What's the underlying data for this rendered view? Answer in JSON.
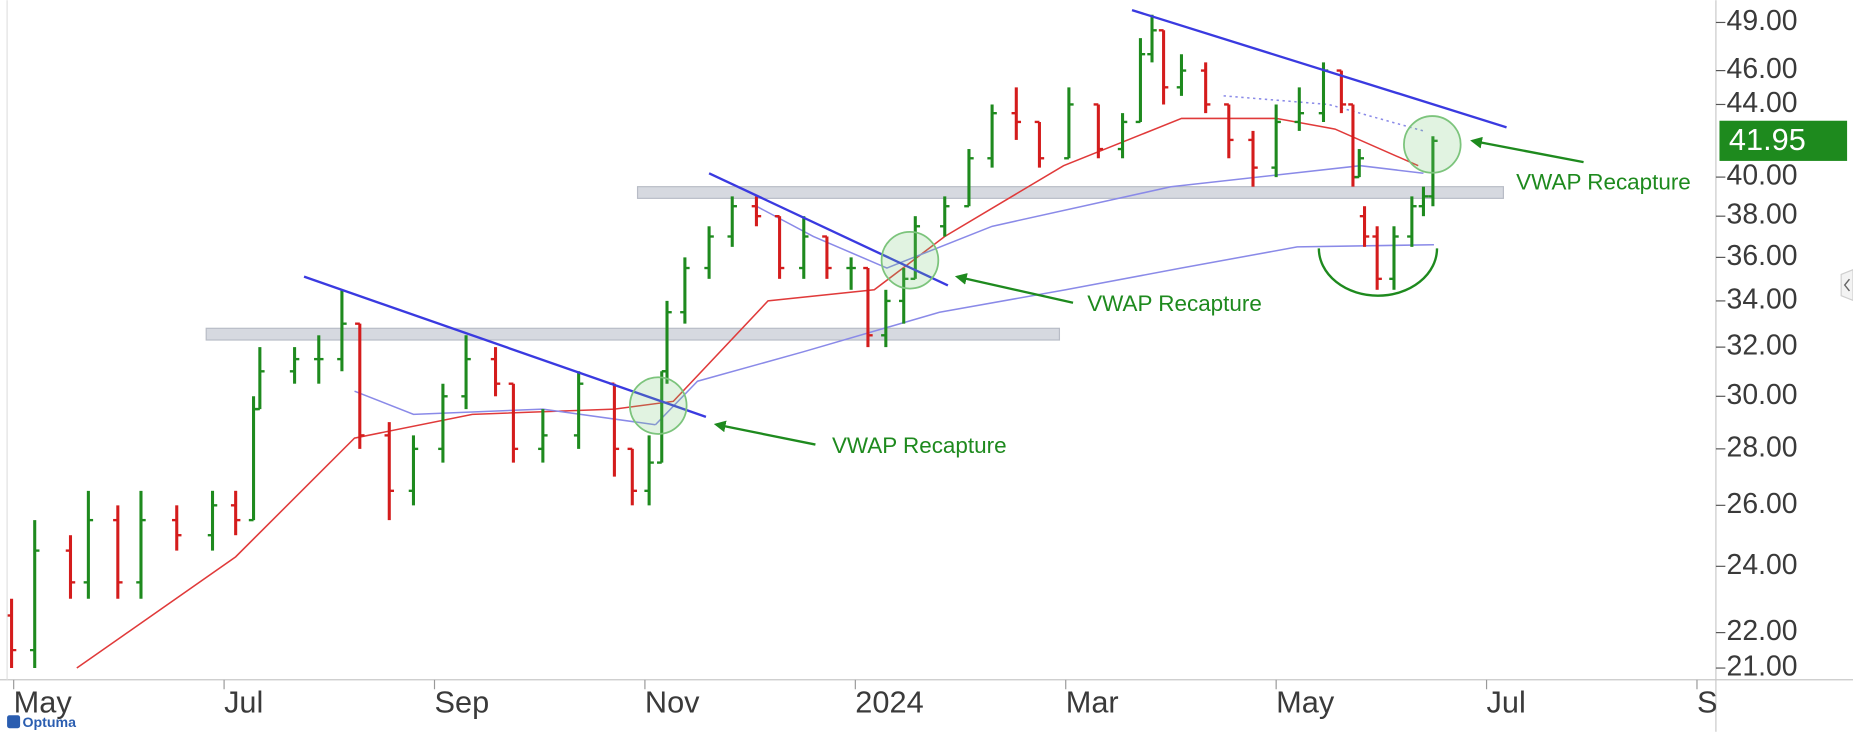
{
  "chart_data": {
    "type": "ohlc",
    "x": [
      -0.02,
      0.2,
      0.54,
      0.71,
      0.99,
      1.21,
      1.55,
      1.89,
      2.11,
      2.28,
      2.34,
      2.67,
      2.9,
      3.12,
      3.29,
      3.57,
      3.8,
      4.08,
      4.3,
      4.58,
      4.75,
      5.03,
      5.37,
      5.71,
      5.88,
      6.04,
      6.16,
      6.21,
      6.38,
      6.61,
      6.83,
      7.06,
      7.28,
      7.51,
      7.73,
      7.96,
      8.12,
      8.29,
      8.46,
      8.57,
      8.85,
      9.08,
      9.3,
      9.53,
      9.75,
      10.03,
      10.31,
      10.54,
      10.71,
      10.82,
      10.93,
      11.1,
      11.33,
      11.55,
      11.78,
      12,
      12.22,
      12.45,
      12.62,
      12.73,
      12.79,
      12.84,
      12.96,
      13.12,
      13.29,
      13.4,
      13.49
    ],
    "open": [
      22.5,
      21.5,
      24.5,
      23.5,
      25.5,
      23.5,
      25.5,
      25,
      26,
      25.5,
      29.5,
      31,
      31.5,
      31.5,
      33,
      28.5,
      26.5,
      28,
      30,
      31.5,
      30.5,
      28,
      28.5,
      30.5,
      28,
      26.5,
      27.5,
      31,
      33.5,
      35.5,
      37,
      38.5,
      38,
      35.5,
      37,
      35.5,
      35.5,
      32.5,
      34,
      35,
      37.5,
      38.5,
      41,
      43.5,
      43,
      41,
      44,
      41.5,
      43,
      47,
      48.5,
      45,
      46,
      44,
      42,
      40.5,
      43,
      43.5,
      46,
      44,
      40,
      38,
      37,
      35,
      37,
      38.5,
      39
    ],
    "high": [
      23,
      25.5,
      25,
      26.5,
      26,
      26.5,
      26,
      26.5,
      26.5,
      30,
      32,
      32,
      32.5,
      34.5,
      33,
      29,
      28.5,
      30.5,
      32.5,
      32,
      30.5,
      29.5,
      31,
      30.5,
      28,
      28.5,
      31,
      34,
      36,
      37.5,
      39,
      39,
      38,
      38,
      37,
      36,
      35.5,
      34.5,
      35.5,
      38,
      39,
      41.5,
      44,
      45,
      43,
      45,
      44,
      43.5,
      48,
      49.5,
      48.5,
      47,
      46.5,
      44,
      42.5,
      44,
      45,
      46.5,
      46,
      44,
      41.5,
      38.5,
      37.5,
      37.5,
      39,
      39.5,
      42.2
    ],
    "low": [
      21,
      21,
      23,
      23,
      23,
      23,
      24.5,
      24.5,
      25,
      25.5,
      29.5,
      30.5,
      30.5,
      31,
      28,
      25.5,
      26,
      27.5,
      29.5,
      30,
      27.5,
      27.5,
      28,
      27,
      26,
      26,
      27.5,
      30.5,
      33,
      35,
      36.5,
      37.5,
      35,
      35,
      35,
      34.5,
      32,
      32,
      33,
      35,
      37,
      38.5,
      40.5,
      42,
      40.5,
      41,
      41,
      41,
      43,
      46.5,
      44,
      44.5,
      43.5,
      41,
      39.5,
      40,
      42.5,
      43,
      43.5,
      39.5,
      40,
      36.5,
      34.5,
      34.5,
      36.5,
      38,
      38.5
    ],
    "close": [
      21.5,
      24.5,
      23.5,
      25.5,
      23.5,
      25.5,
      25,
      26,
      25.5,
      29.5,
      31,
      31.5,
      31.5,
      33,
      28.5,
      26.5,
      28,
      30,
      31.5,
      30.5,
      28,
      28.5,
      30.5,
      28,
      26.5,
      27.5,
      31,
      33.5,
      35.5,
      37,
      38.5,
      38,
      35.5,
      37,
      35.5,
      35.5,
      32.5,
      34,
      35,
      37.5,
      38.5,
      41,
      43.5,
      43,
      41,
      44,
      41.5,
      43,
      47,
      48.5,
      45,
      46,
      44,
      42,
      40.5,
      43,
      43.5,
      46,
      44,
      40,
      41,
      37,
      35,
      37,
      38.5,
      39,
      41.95
    ],
    "up_color": "#1e8a1e",
    "down_color": "#d41c1c",
    "last_price_color": "#1e8a1e",
    "log_scale": true,
    "xlim": [
      -0.13,
      16.18
    ],
    "xticks": [
      {
        "value": 0,
        "label": "May"
      },
      {
        "value": 2,
        "label": "Jul"
      },
      {
        "value": 4,
        "label": "Sep"
      },
      {
        "value": 6,
        "label": "Nov"
      },
      {
        "value": 8,
        "label": "2024"
      },
      {
        "value": 10,
        "label": "Mar"
      },
      {
        "value": 12,
        "label": "May"
      },
      {
        "value": 14,
        "label": "Jul"
      },
      {
        "value": 16,
        "label": "Sep"
      }
    ],
    "ylim": [
      20.68,
      50.45
    ],
    "yticks": [
      {
        "value": 21,
        "label": "21.00"
      },
      {
        "value": 22,
        "label": "22.00"
      },
      {
        "value": 24,
        "label": "24.00"
      },
      {
        "value": 26,
        "label": "26.00"
      },
      {
        "value": 28,
        "label": "28.00"
      },
      {
        "value": 30,
        "label": "30.00"
      },
      {
        "value": 32,
        "label": "32.00"
      },
      {
        "value": 34,
        "label": "34.00"
      },
      {
        "value": 36,
        "label": "36.00"
      },
      {
        "value": 38,
        "label": "38.00"
      },
      {
        "value": 40,
        "label": "40.00"
      },
      {
        "value": 44,
        "label": "44.00"
      },
      {
        "value": 46,
        "label": "46.00"
      },
      {
        "value": 49,
        "label": "49.00"
      }
    ],
    "lines": [
      {
        "color": "#e03a3a",
        "dash": false,
        "x": [
          0.6,
          2.11,
          3.24,
          4.36,
          5.71,
          6.27,
          7.17,
          8.18,
          8.85,
          9.98,
          11.1,
          12,
          12.56,
          13.35
        ],
        "values": [
          21,
          24.3,
          28.4,
          29.3,
          29.5,
          29.8,
          34,
          34.5,
          37,
          40.6,
          43.2,
          43.2,
          42.6,
          40.6
        ]
      },
      {
        "color": "#8a8ae8",
        "dash": false,
        "x": [
          3.24,
          3.8,
          5.03,
          6.1
        ],
        "values": [
          30.2,
          29.3,
          29.5,
          28.9
        ]
      },
      {
        "color": "#8a8ae8",
        "dash": false,
        "x": [
          6.1,
          6.5,
          7.5,
          8.8,
          10,
          11.1,
          12.2,
          13.5
        ],
        "values": [
          28.9,
          30.6,
          31.8,
          33.5,
          34.5,
          35.5,
          36.5,
          36.6
        ]
      },
      {
        "color": "#8a8ae8",
        "dash": false,
        "x": [
          7.06,
          7.6,
          8.3,
          9.3,
          11,
          12.8,
          13.4
        ],
        "values": [
          38.5,
          37,
          35.5,
          37.5,
          39.5,
          40.6,
          40.2
        ]
      },
      {
        "color": "#8a8ae8",
        "dash": true,
        "x": [
          11.5,
          12.5,
          13.4
        ],
        "values": [
          44.5,
          44,
          42.5
        ]
      }
    ],
    "trendlines": [
      {
        "x": [
          2.76,
          6.58
        ],
        "values": [
          35.1,
          29.2
        ]
      },
      {
        "x": [
          6.61,
          8.88
        ],
        "values": [
          40.2,
          34.7
        ]
      },
      {
        "x": [
          10.63,
          14.19
        ],
        "values": [
          49.8,
          42.7
        ]
      }
    ],
    "zones": [
      {
        "x": [
          1.83,
          9.94
        ],
        "y": [
          32.3,
          32.8
        ]
      },
      {
        "x": [
          5.93,
          14.16
        ],
        "y": [
          38.9,
          39.5
        ]
      }
    ],
    "annotations": [
      "VWAP Recapture",
      "VWAP Recapture",
      "VWAP Recapture"
    ],
    "logo": "Optuma"
  }
}
